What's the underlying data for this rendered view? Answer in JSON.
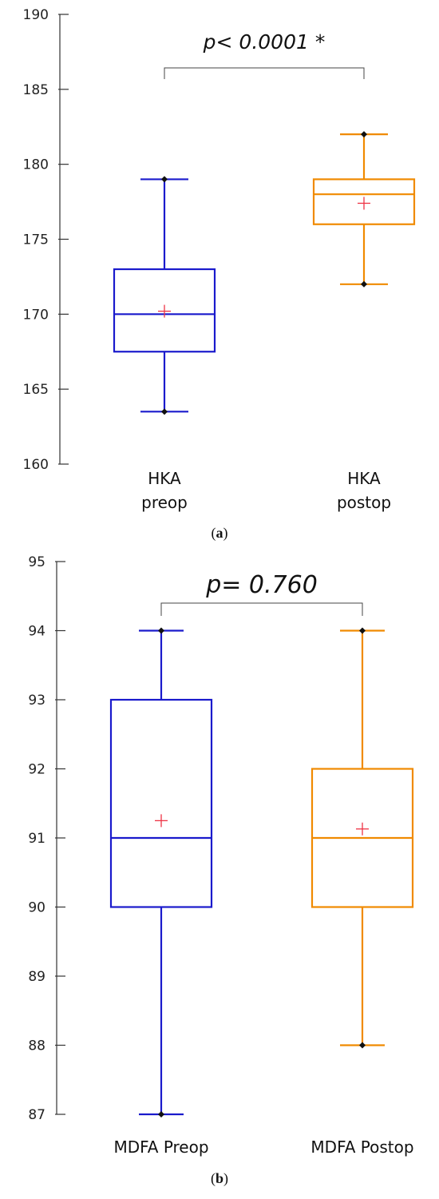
{
  "chart_data": [
    {
      "type": "box",
      "panel_caption": {
        "open": "(",
        "letter": "a",
        "close": ")"
      },
      "categories": [
        [
          "HKA",
          "preop"
        ],
        [
          "HKA",
          "postop"
        ]
      ],
      "y_ticks": [
        160,
        165,
        170,
        175,
        180,
        185,
        190
      ],
      "ylim": [
        160,
        190
      ],
      "significance": "p< 0.0001 *",
      "colors": [
        "#1a1acc",
        "#f08a00"
      ],
      "mean_marker_color": "#ee3344",
      "boxes": [
        {
          "whisker_low": 163.5,
          "q1": 167.5,
          "median": 170,
          "q3": 173,
          "whisker_high": 179,
          "mean": 170.2
        },
        {
          "whisker_low": 172,
          "q1": 176,
          "median": 178,
          "q3": 179,
          "whisker_high": 182,
          "mean": 177.4
        }
      ]
    },
    {
      "type": "box",
      "panel_caption": {
        "open": "(",
        "letter": "b",
        "close": ")"
      },
      "categories": [
        [
          "MDFA Preop"
        ],
        [
          "MDFA Postop"
        ]
      ],
      "y_ticks": [
        87,
        88,
        89,
        90,
        91,
        92,
        93,
        94,
        95
      ],
      "ylim": [
        87,
        95
      ],
      "significance": "p= 0.760",
      "colors": [
        "#1a1acc",
        "#f08a00"
      ],
      "mean_marker_color": "#ee3344",
      "boxes": [
        {
          "whisker_low": 87,
          "q1": 90,
          "median": 91,
          "q3": 93,
          "whisker_high": 94,
          "mean": 91.25
        },
        {
          "whisker_low": 88,
          "q1": 90,
          "median": 91,
          "q3": 92,
          "whisker_high": 94,
          "mean": 91.13
        }
      ]
    }
  ]
}
